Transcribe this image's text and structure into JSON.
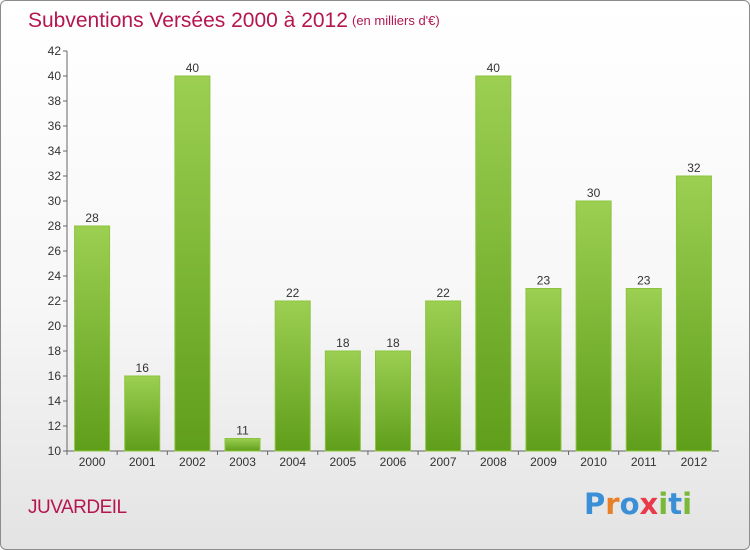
{
  "title": "Subventions Versées 2000 à 2012",
  "unit_note": "(en milliers d'€)",
  "commune": "JUVARDEIL",
  "logo": {
    "text": "Proxiti",
    "letters": [
      "P",
      "r",
      "o",
      "x",
      "i",
      "t",
      "i"
    ],
    "colors": [
      "#3a8fd6",
      "#e8802a",
      "#3a8fd6",
      "#e83a4a",
      "#7ab83a",
      "#3a8fd6",
      "#7ab83a"
    ]
  },
  "colors": {
    "title": "#b5164f",
    "bar_top": "#9ccf52",
    "bar_bottom": "#5f9e1a"
  },
  "chart_data": {
    "type": "bar",
    "title": "Subventions Versées 2000 à 2012",
    "xlabel": "",
    "ylabel": "",
    "categories": [
      "2000",
      "2001",
      "2002",
      "2003",
      "2004",
      "2005",
      "2006",
      "2007",
      "2008",
      "2009",
      "2010",
      "2011",
      "2012"
    ],
    "values": [
      28,
      16,
      40,
      11,
      22,
      18,
      18,
      22,
      40,
      23,
      30,
      23,
      32
    ],
    "ylim": [
      10,
      42
    ],
    "yticks": [
      10,
      12,
      14,
      16,
      18,
      20,
      22,
      24,
      26,
      28,
      30,
      32,
      34,
      36,
      38,
      40,
      42
    ],
    "grid": false,
    "data_labels": true
  }
}
